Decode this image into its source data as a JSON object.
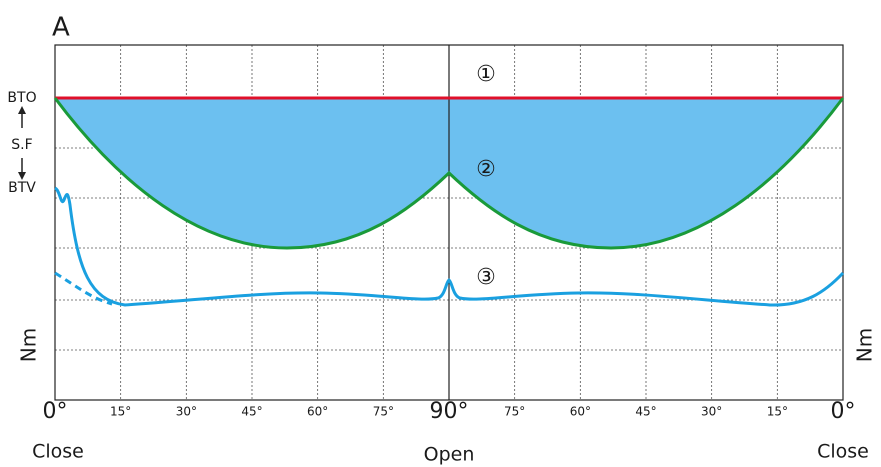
{
  "panel_label": "A",
  "markers": [
    "①",
    "②",
    "③"
  ],
  "left_labels": [
    "BTO",
    "S.F",
    "BTV"
  ],
  "unit_label": "Nm",
  "x_labels": [
    "0°",
    "15°",
    "30°",
    "45°",
    "60°",
    "75°",
    "90°",
    "75°",
    "60°",
    "45°",
    "30°",
    "15°",
    "0°"
  ],
  "positions": [
    "Close",
    "Open",
    "Close"
  ]
}
